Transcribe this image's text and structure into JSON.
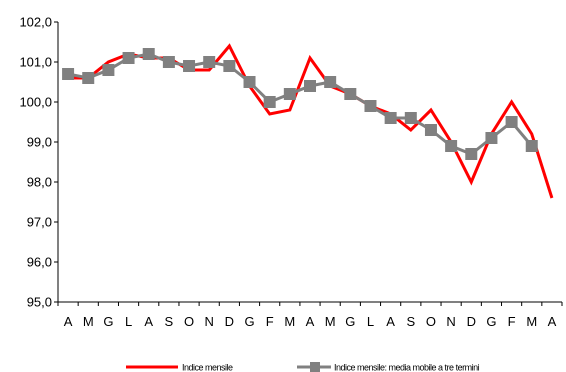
{
  "chart_data": {
    "type": "line",
    "categories": [
      "A",
      "M",
      "G",
      "L",
      "A",
      "S",
      "O",
      "N",
      "D",
      "G",
      "F",
      "M",
      "A",
      "M",
      "G",
      "L",
      "A",
      "S",
      "O",
      "N",
      "D",
      "G",
      "F",
      "M",
      "A"
    ],
    "ylim": [
      95.0,
      102.0
    ],
    "yticks": [
      "95,0",
      "96,0",
      "97,0",
      "98,0",
      "99,0",
      "100,0",
      "101,0",
      "102,0"
    ],
    "grid": false,
    "legend_position": "bottom",
    "series": [
      {
        "name": "Indice mensile",
        "color": "#ff0000",
        "marker": "none",
        "values": [
          100.6,
          100.6,
          101.0,
          101.2,
          101.1,
          101.1,
          100.8,
          100.8,
          101.4,
          100.4,
          99.7,
          99.8,
          101.1,
          100.4,
          100.2,
          99.9,
          99.7,
          99.3,
          99.8,
          99.0,
          98.0,
          99.2,
          100.0,
          99.2,
          97.6
        ]
      },
      {
        "name": "Indice mensile: media mobile a tre termini",
        "color": "#808080",
        "marker": "square",
        "values": [
          100.7,
          100.6,
          100.8,
          101.1,
          101.2,
          101.0,
          100.9,
          101.0,
          100.9,
          100.5,
          100.0,
          100.2,
          100.4,
          100.5,
          100.2,
          99.9,
          99.6,
          99.6,
          99.3,
          98.9,
          98.7,
          99.1,
          99.5,
          98.9,
          null
        ]
      }
    ]
  }
}
